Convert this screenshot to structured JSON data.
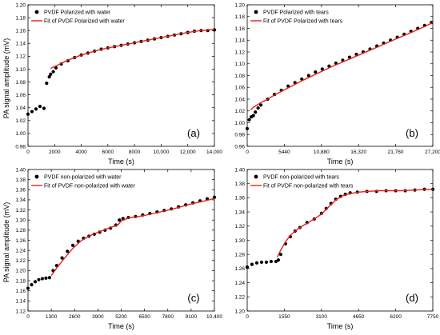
{
  "y_axis_label": "PA signal amplitude (mV)",
  "colors": {
    "data": "#000000",
    "fit": "#e8201a",
    "axis": "#000000"
  },
  "chart_data": [
    {
      "type": "scatter",
      "panel_label": "(a)",
      "xlabel": "Time (s)",
      "ylabel": "PA signal amplitude (mV)",
      "xlim": [
        0,
        14000
      ],
      "ylim": [
        0.98,
        1.2
      ],
      "xticks": [
        0,
        2000,
        4000,
        6000,
        8000,
        10000,
        12000,
        14000
      ],
      "xtick_labels": [
        "0",
        "2000",
        "4000",
        "6000",
        "8000",
        "10,000",
        "12,000",
        "14,000"
      ],
      "yticks": [
        0.98,
        1.0,
        1.02,
        1.04,
        1.06,
        1.08,
        1.1,
        1.12,
        1.14,
        1.16,
        1.18,
        1.2
      ],
      "ytick_labels": [
        "0.98",
        "1.00",
        "1.02",
        "1.04",
        "1.06",
        "1.08",
        "1.10",
        "1.12",
        "1.14",
        "1.16",
        "1.18",
        "1.20"
      ],
      "legend": [
        "PVDF Polarized with water",
        "Fit of PVDF Polarized with water"
      ],
      "legend_position": "top-left",
      "series": [
        {
          "name": "PVDF Polarized with water",
          "kind": "scatter",
          "x": [
            0,
            300,
            600,
            900,
            1200,
            1400,
            1600,
            1700,
            1900,
            2100,
            2500,
            3000,
            3500,
            4000,
            4500,
            5000,
            5500,
            6000,
            6500,
            7000,
            7500,
            8000,
            8500,
            9000,
            9500,
            10000,
            10500,
            11000,
            11500,
            12000,
            12500,
            13000,
            13500,
            14000
          ],
          "y": [
            1.03,
            1.034,
            1.038,
            1.042,
            1.039,
            1.078,
            1.088,
            1.092,
            1.096,
            1.102,
            1.108,
            1.113,
            1.118,
            1.122,
            1.125,
            1.128,
            1.131,
            1.133,
            1.135,
            1.137,
            1.139,
            1.141,
            1.143,
            1.145,
            1.147,
            1.149,
            1.151,
            1.153,
            1.155,
            1.157,
            1.159,
            1.16,
            1.16,
            1.161
          ]
        },
        {
          "name": "Fit of PVDF Polarized with water",
          "kind": "line",
          "x": [
            1700,
            2000,
            2500,
            3000,
            3500,
            4000,
            5000,
            6000,
            7000,
            8000,
            9000,
            10000,
            11000,
            12000,
            13000,
            14000
          ],
          "y": [
            1.101,
            1.104,
            1.109,
            1.114,
            1.118,
            1.122,
            1.128,
            1.133,
            1.137,
            1.141,
            1.145,
            1.149,
            1.153,
            1.157,
            1.16,
            1.162
          ]
        }
      ]
    },
    {
      "type": "scatter",
      "panel_label": "(b)",
      "xlabel": "Time (s)",
      "ylabel": "",
      "xlim": [
        0,
        27200
      ],
      "ylim": [
        0.96,
        1.2
      ],
      "xticks": [
        0,
        5440,
        10880,
        16320,
        21760,
        27200
      ],
      "xtick_labels": [
        "0",
        "5440",
        "10,880",
        "16,320",
        "21,760",
        "27,200"
      ],
      "yticks": [
        0.96,
        0.98,
        1.0,
        1.02,
        1.04,
        1.06,
        1.08,
        1.1,
        1.12,
        1.14,
        1.16,
        1.18,
        1.2
      ],
      "ytick_labels": [
        "0.96",
        "0.98",
        "1.00",
        "1.02",
        "1.04",
        "1.06",
        "1.08",
        "1.10",
        "1.12",
        "1.14",
        "1.16",
        "1.18",
        "1.20"
      ],
      "legend": [
        "PVDF Polarized with tears",
        "Fit of PVDF Polarized with tears"
      ],
      "legend_position": "top-left",
      "series": [
        {
          "name": "PVDF Polarized with tears",
          "kind": "scatter",
          "x": [
            0,
            300,
            600,
            900,
            1200,
            1600,
            2000,
            3000,
            4000,
            5000,
            6000,
            7000,
            8000,
            9000,
            10000,
            11000,
            12000,
            13000,
            14000,
            15000,
            16000,
            17000,
            18000,
            19000,
            20000,
            21000,
            22000,
            23000,
            24000,
            25000,
            26000,
            27000
          ],
          "y": [
            0.99,
            1.005,
            1.01,
            1.012,
            1.018,
            1.025,
            1.03,
            1.04,
            1.048,
            1.055,
            1.062,
            1.068,
            1.074,
            1.08,
            1.086,
            1.091,
            1.096,
            1.101,
            1.106,
            1.111,
            1.116,
            1.12,
            1.125,
            1.13,
            1.135,
            1.14,
            1.145,
            1.15,
            1.155,
            1.16,
            1.165,
            1.17
          ]
        },
        {
          "name": "Fit of PVDF Polarized with tears",
          "kind": "line",
          "x": [
            500,
            1000,
            2000,
            3000,
            4000,
            5000,
            6000,
            8000,
            10000,
            12000,
            14000,
            16000,
            18000,
            20000,
            22000,
            24000,
            26000,
            27200
          ],
          "y": [
            1.022,
            1.027,
            1.034,
            1.04,
            1.047,
            1.053,
            1.059,
            1.071,
            1.082,
            1.093,
            1.103,
            1.113,
            1.123,
            1.133,
            1.143,
            1.153,
            1.163,
            1.17
          ]
        }
      ]
    },
    {
      "type": "scatter",
      "panel_label": "(c)",
      "xlabel": "Time (s)",
      "ylabel": "PA signal amplitude (mV)",
      "xlim": [
        0,
        10400
      ],
      "ylim": [
        1.12,
        1.4
      ],
      "xticks": [
        0,
        1300,
        2600,
        3900,
        5200,
        6500,
        7800,
        9100,
        10400
      ],
      "xtick_labels": [
        "0",
        "1300",
        "2600",
        "3900",
        "5200",
        "6500",
        "7800",
        "9100",
        "10,400"
      ],
      "yticks": [
        1.12,
        1.14,
        1.16,
        1.18,
        1.2,
        1.22,
        1.24,
        1.26,
        1.28,
        1.3,
        1.32,
        1.34,
        1.36,
        1.38,
        1.4
      ],
      "ytick_labels": [
        "1.12",
        "1.14",
        "1.16",
        "1.18",
        "1.20",
        "1.22",
        "1.24",
        "1.26",
        "1.28",
        "1.30",
        "1.32",
        "1.34",
        "1.36",
        "1.38",
        "1.40"
      ],
      "legend": [
        "PVDF non-polarized with water",
        "Fit of PVDF non-polarized with water"
      ],
      "legend_position": "top-left",
      "series": [
        {
          "name": "PVDF non-polarized with water",
          "kind": "scatter",
          "x": [
            0,
            200,
            400,
            600,
            800,
            1000,
            1200,
            1400,
            1600,
            1900,
            2200,
            2500,
            2800,
            3100,
            3400,
            3700,
            4000,
            4300,
            4600,
            4900,
            5100,
            5300,
            5600,
            6000,
            6400,
            6800,
            7200,
            7600,
            8000,
            8400,
            8800,
            9200,
            9600,
            10000,
            10400
          ],
          "y": [
            1.165,
            1.172,
            1.178,
            1.182,
            1.184,
            1.185,
            1.186,
            1.2,
            1.21,
            1.225,
            1.238,
            1.25,
            1.258,
            1.264,
            1.268,
            1.272,
            1.276,
            1.28,
            1.284,
            1.29,
            1.3,
            1.303,
            1.305,
            1.307,
            1.31,
            1.313,
            1.316,
            1.319,
            1.322,
            1.326,
            1.33,
            1.334,
            1.338,
            1.342,
            1.345
          ]
        },
        {
          "name": "Fit of PVDF non-polarized with water",
          "kind": "line",
          "x": [
            1300,
            1600,
            2000,
            2500,
            3000,
            3500,
            4000,
            4500,
            5000,
            5200,
            5600,
            6000,
            6500,
            7000,
            7500,
            8000,
            8500,
            9000,
            9500,
            10000,
            10400
          ],
          "y": [
            1.19,
            1.205,
            1.223,
            1.244,
            1.26,
            1.27,
            1.277,
            1.284,
            1.29,
            1.298,
            1.304,
            1.306,
            1.309,
            1.313,
            1.317,
            1.321,
            1.326,
            1.331,
            1.335,
            1.339,
            1.343
          ]
        }
      ]
    },
    {
      "type": "scatter",
      "panel_label": "(d)",
      "xlabel": "Time (s)",
      "ylabel": "",
      "xlim": [
        0,
        7750
      ],
      "ylim": [
        1.2,
        1.4
      ],
      "xticks": [
        0,
        1550,
        3100,
        4650,
        6200,
        7750
      ],
      "xtick_labels": [
        "0",
        "1550",
        "3100",
        "4650",
        "6200",
        "7750"
      ],
      "yticks": [
        1.2,
        1.22,
        1.24,
        1.26,
        1.28,
        1.3,
        1.32,
        1.34,
        1.36,
        1.38,
        1.4
      ],
      "ytick_labels": [
        "1.20",
        "1.22",
        "1.24",
        "1.26",
        "1.28",
        "1.30",
        "1.32",
        "1.34",
        "1.36",
        "1.38",
        "1.40"
      ],
      "legend": [
        "PVDF non-polarized with tears",
        "Fit of PVDF non-polarized with tears"
      ],
      "legend_position": "top-left",
      "series": [
        {
          "name": "PVDF non-polarized with tears",
          "kind": "scatter",
          "x": [
            0,
            200,
            400,
            600,
            800,
            1000,
            1200,
            1300,
            1400,
            1600,
            1800,
            2000,
            2200,
            2500,
            2800,
            3100,
            3300,
            3500,
            3700,
            3900,
            4100,
            4300,
            4600,
            5000,
            5400,
            5800,
            6200,
            6600,
            7000,
            7400,
            7750
          ],
          "y": [
            1.262,
            1.266,
            1.268,
            1.269,
            1.269,
            1.27,
            1.27,
            1.272,
            1.28,
            1.295,
            1.305,
            1.313,
            1.318,
            1.325,
            1.33,
            1.338,
            1.345,
            1.352,
            1.358,
            1.362,
            1.365,
            1.367,
            1.368,
            1.369,
            1.369,
            1.37,
            1.37,
            1.37,
            1.371,
            1.372,
            1.372
          ]
        },
        {
          "name": "Fit of PVDF non-polarized with tears",
          "kind": "line",
          "x": [
            1250,
            1400,
            1600,
            1800,
            2000,
            2200,
            2500,
            2800,
            3100,
            3400,
            3700,
            4000,
            4300,
            4650,
            5000,
            5500,
            6000,
            6500,
            7000,
            7750
          ],
          "y": [
            1.276,
            1.286,
            1.298,
            1.307,
            1.313,
            1.318,
            1.324,
            1.33,
            1.337,
            1.347,
            1.357,
            1.363,
            1.366,
            1.368,
            1.369,
            1.37,
            1.37,
            1.37,
            1.371,
            1.372
          ]
        }
      ]
    }
  ]
}
